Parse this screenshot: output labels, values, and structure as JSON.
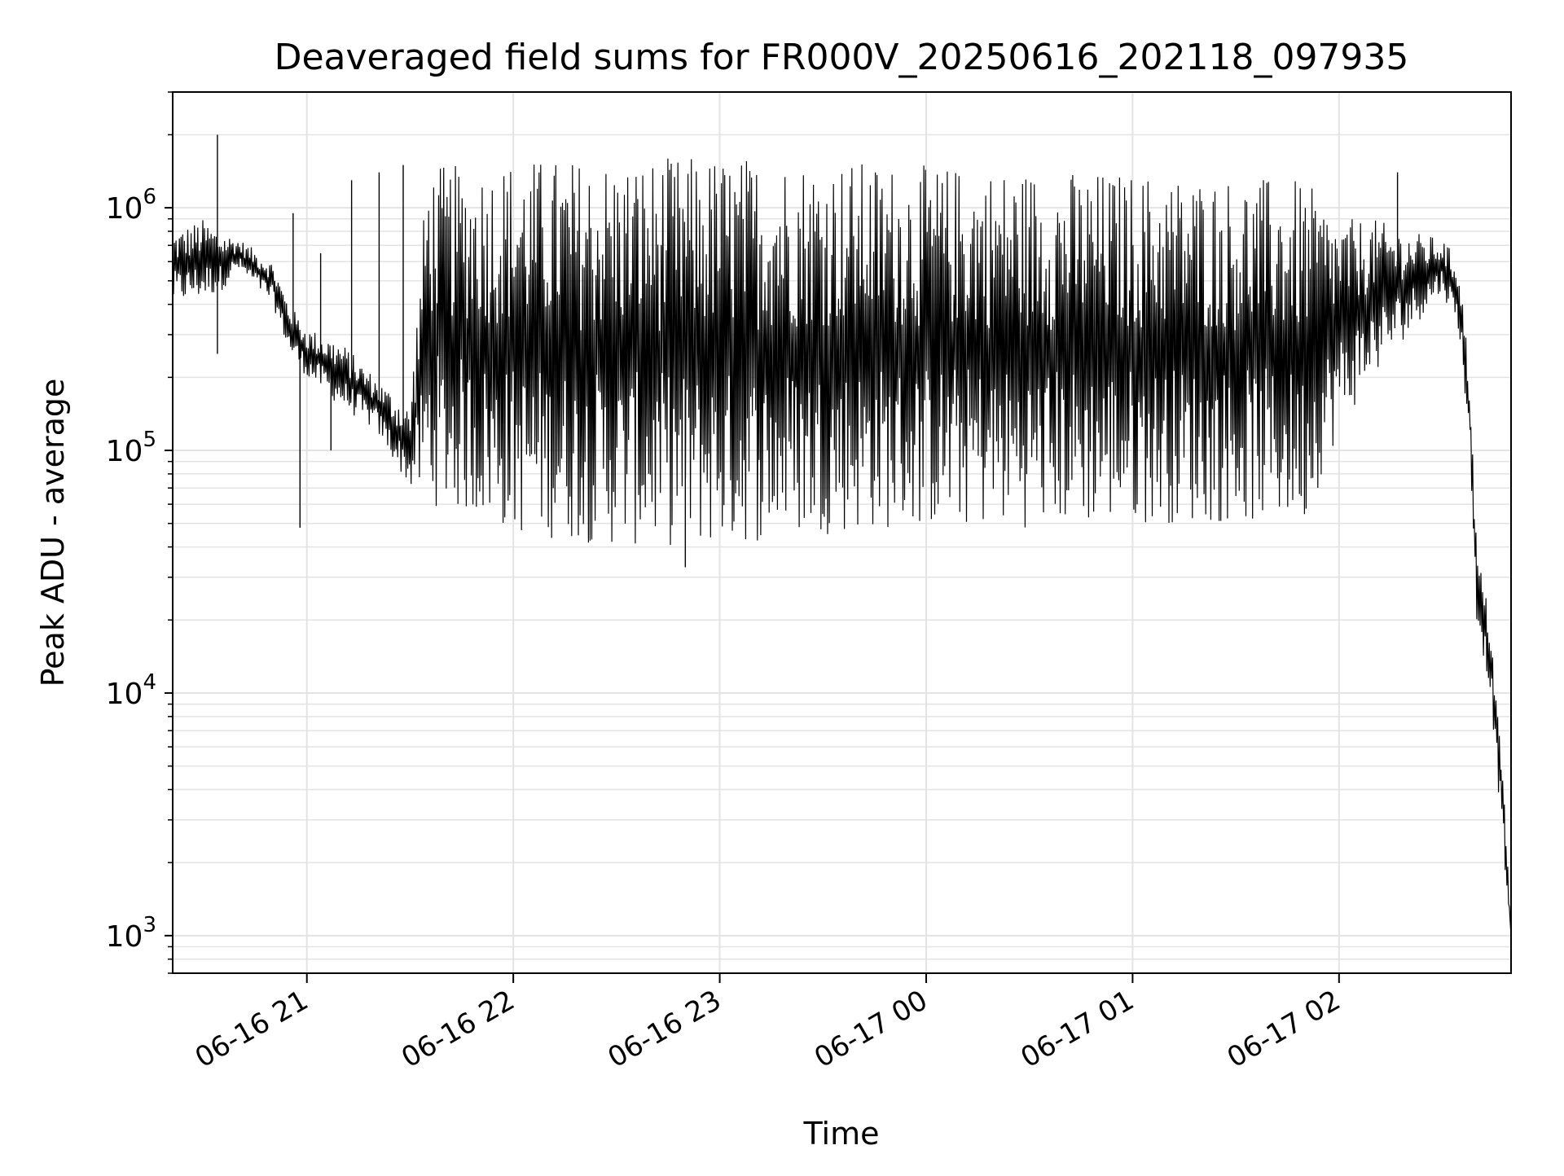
{
  "chart_data": {
    "type": "line",
    "title": "Deaveraged field sums for FR000V_20250616_202118_097935",
    "xlabel": "Time",
    "ylabel": "Peak ADU - average",
    "yscale": "log",
    "xlim": [
      "2025-06-16 20:21",
      "2025-06-17 02:50"
    ],
    "ylim": [
      700,
      3000000
    ],
    "x_ticks": [
      {
        "t": "2025-06-16 21:00",
        "label": "06-16 21"
      },
      {
        "t": "2025-06-16 22:00",
        "label": "06-16 22"
      },
      {
        "t": "2025-06-16 23:00",
        "label": "06-16 23"
      },
      {
        "t": "2025-06-17 00:00",
        "label": "06-17 00"
      },
      {
        "t": "2025-06-17 01:00",
        "label": "06-17 01"
      },
      {
        "t": "2025-06-17 02:00",
        "label": "06-17 02"
      }
    ],
    "y_ticks": [
      {
        "value": 1000,
        "base": "10",
        "exp": "3"
      },
      {
        "value": 10000,
        "base": "10",
        "exp": "4"
      },
      {
        "value": 100000,
        "base": "10",
        "exp": "5"
      },
      {
        "value": 1000000,
        "base": "10",
        "exp": "6"
      }
    ],
    "grid": true,
    "line_color": "#000000",
    "series": [
      {
        "envelope": [
          {
            "t": "2025-06-16 20:21",
            "low": 400000,
            "high": 800000
          },
          {
            "t": "2025-06-16 20:30",
            "low": 420000,
            "high": 900000
          },
          {
            "t": "2025-06-16 20:35",
            "low": 450000,
            "high": 800000
          },
          {
            "t": "2025-06-16 20:40",
            "low": 550000,
            "high": 750000
          },
          {
            "t": "2025-06-16 20:50",
            "low": 400000,
            "high": 600000
          },
          {
            "t": "2025-06-16 20:55",
            "low": 250000,
            "high": 400000
          },
          {
            "t": "2025-06-16 21:00",
            "low": 200000,
            "high": 320000
          },
          {
            "t": "2025-06-16 21:10",
            "low": 150000,
            "high": 280000
          },
          {
            "t": "2025-06-16 21:20",
            "low": 120000,
            "high": 200000
          },
          {
            "t": "2025-06-16 21:30",
            "low": 70000,
            "high": 150000
          },
          {
            "t": "2025-06-16 21:35",
            "low": 60000,
            "high": 1500000
          },
          {
            "t": "2025-06-16 21:45",
            "low": 55000,
            "high": 1500000
          },
          {
            "t": "2025-06-16 22:00",
            "low": 45000,
            "high": 1600000
          },
          {
            "t": "2025-06-16 22:30",
            "low": 40000,
            "high": 1600000
          },
          {
            "t": "2025-06-16 23:00",
            "low": 40000,
            "high": 1650000
          },
          {
            "t": "2025-06-16 23:30",
            "low": 45000,
            "high": 1600000
          },
          {
            "t": "2025-06-17 00:00",
            "low": 48000,
            "high": 1500000
          },
          {
            "t": "2025-06-17 00:30",
            "low": 48000,
            "high": 1450000
          },
          {
            "t": "2025-06-17 01:00",
            "low": 50000,
            "high": 1400000
          },
          {
            "t": "2025-06-17 01:30",
            "low": 50000,
            "high": 1350000
          },
          {
            "t": "2025-06-17 01:50",
            "low": 50000,
            "high": 1300000
          },
          {
            "t": "2025-06-17 02:00",
            "low": 120000,
            "high": 900000
          },
          {
            "t": "2025-06-17 02:10",
            "low": 200000,
            "high": 900000
          },
          {
            "t": "2025-06-17 02:20",
            "low": 300000,
            "high": 800000
          },
          {
            "t": "2025-06-17 02:30",
            "low": 450000,
            "high": 750000
          },
          {
            "t": "2025-06-17 02:35",
            "low": 300000,
            "high": 600000
          },
          {
            "t": "2025-06-17 02:38",
            "low": 100000,
            "high": 200000
          },
          {
            "t": "2025-06-17 02:40",
            "low": 20000,
            "high": 40000
          },
          {
            "t": "2025-06-17 02:44",
            "low": 10000,
            "high": 20000
          },
          {
            "t": "2025-06-17 02:48",
            "low": 2000,
            "high": 4000
          },
          {
            "t": "2025-06-17 02:50",
            "low": 1000,
            "high": 1000
          }
        ],
        "spikes": [
          {
            "t": "2025-06-16 20:34",
            "value": 2000000
          },
          {
            "t": "2025-06-16 20:34",
            "value": 250000
          },
          {
            "t": "2025-06-16 20:58",
            "value": 48000
          },
          {
            "t": "2025-06-16 20:56",
            "value": 950000
          },
          {
            "t": "2025-06-16 21:04",
            "value": 650000
          },
          {
            "t": "2025-06-16 21:07",
            "value": 100000
          },
          {
            "t": "2025-06-16 21:13",
            "value": 1300000
          },
          {
            "t": "2025-06-16 21:21",
            "value": 1400000
          },
          {
            "t": "2025-06-16 21:28",
            "value": 1500000
          },
          {
            "t": "2025-06-16 22:50",
            "value": 33000
          },
          {
            "t": "2025-06-17 02:17",
            "value": 1400000
          }
        ]
      }
    ]
  }
}
